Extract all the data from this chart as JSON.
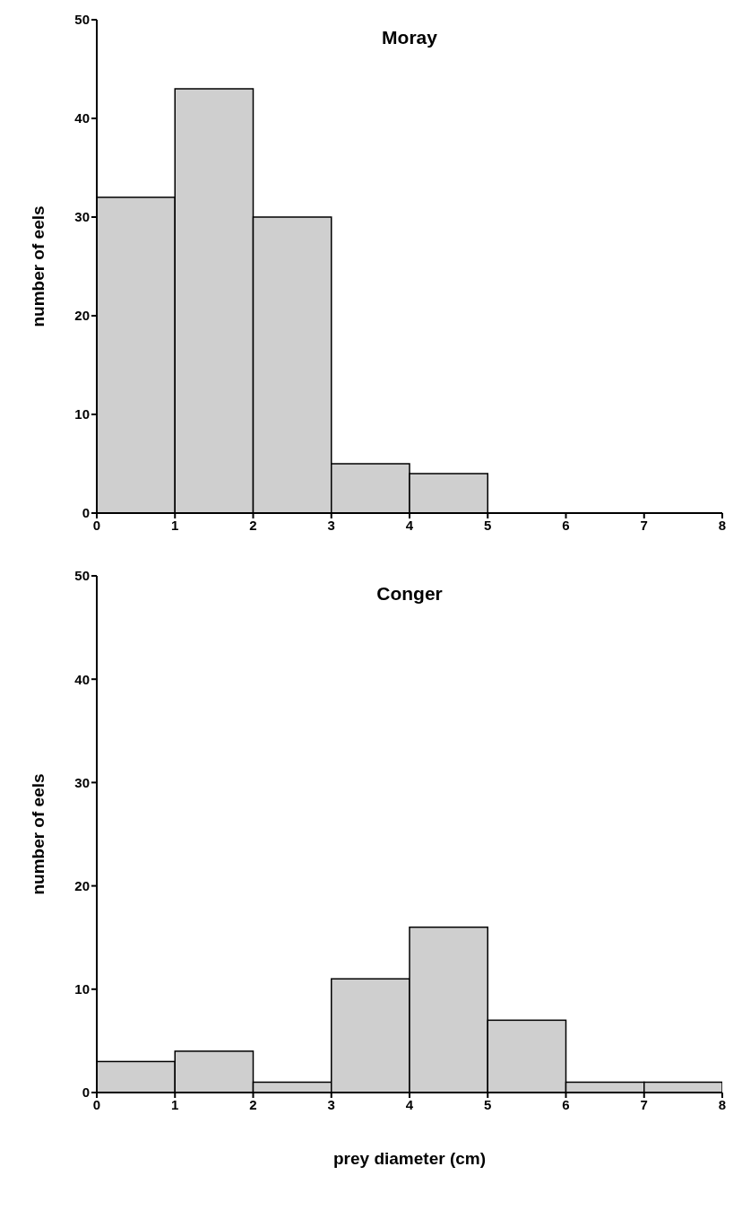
{
  "chart_data": [
    {
      "type": "histogram",
      "title": "Moray",
      "ylabel": "number of eels",
      "bins": [
        0,
        1,
        2,
        3,
        4,
        5,
        6,
        7,
        8
      ],
      "values": [
        32,
        43,
        30,
        5,
        4,
        0,
        0,
        0
      ],
      "color": "#cfcfcf",
      "xlim": [
        0,
        8
      ],
      "xticks": [
        0,
        1,
        2,
        3,
        4,
        5,
        6,
        7,
        8
      ],
      "ylim": [
        0,
        50
      ],
      "yticks": [
        0,
        10,
        20,
        30,
        40,
        50
      ],
      "grid": false,
      "legend": false
    },
    {
      "type": "histogram",
      "title": "Conger",
      "ylabel": "number of eels",
      "xlabel": "prey diameter (cm)",
      "bins": [
        0,
        1,
        2,
        3,
        4,
        5,
        6,
        7,
        8
      ],
      "values": [
        3,
        4,
        1,
        11,
        16,
        7,
        1,
        1
      ],
      "color": "#cfcfcf",
      "xlim": [
        0,
        8
      ],
      "xticks": [
        0,
        1,
        2,
        3,
        4,
        5,
        6,
        7,
        8
      ],
      "ylim": [
        0,
        50
      ],
      "yticks": [
        0,
        10,
        20,
        30,
        40,
        50
      ],
      "grid": false,
      "legend": false
    }
  ]
}
